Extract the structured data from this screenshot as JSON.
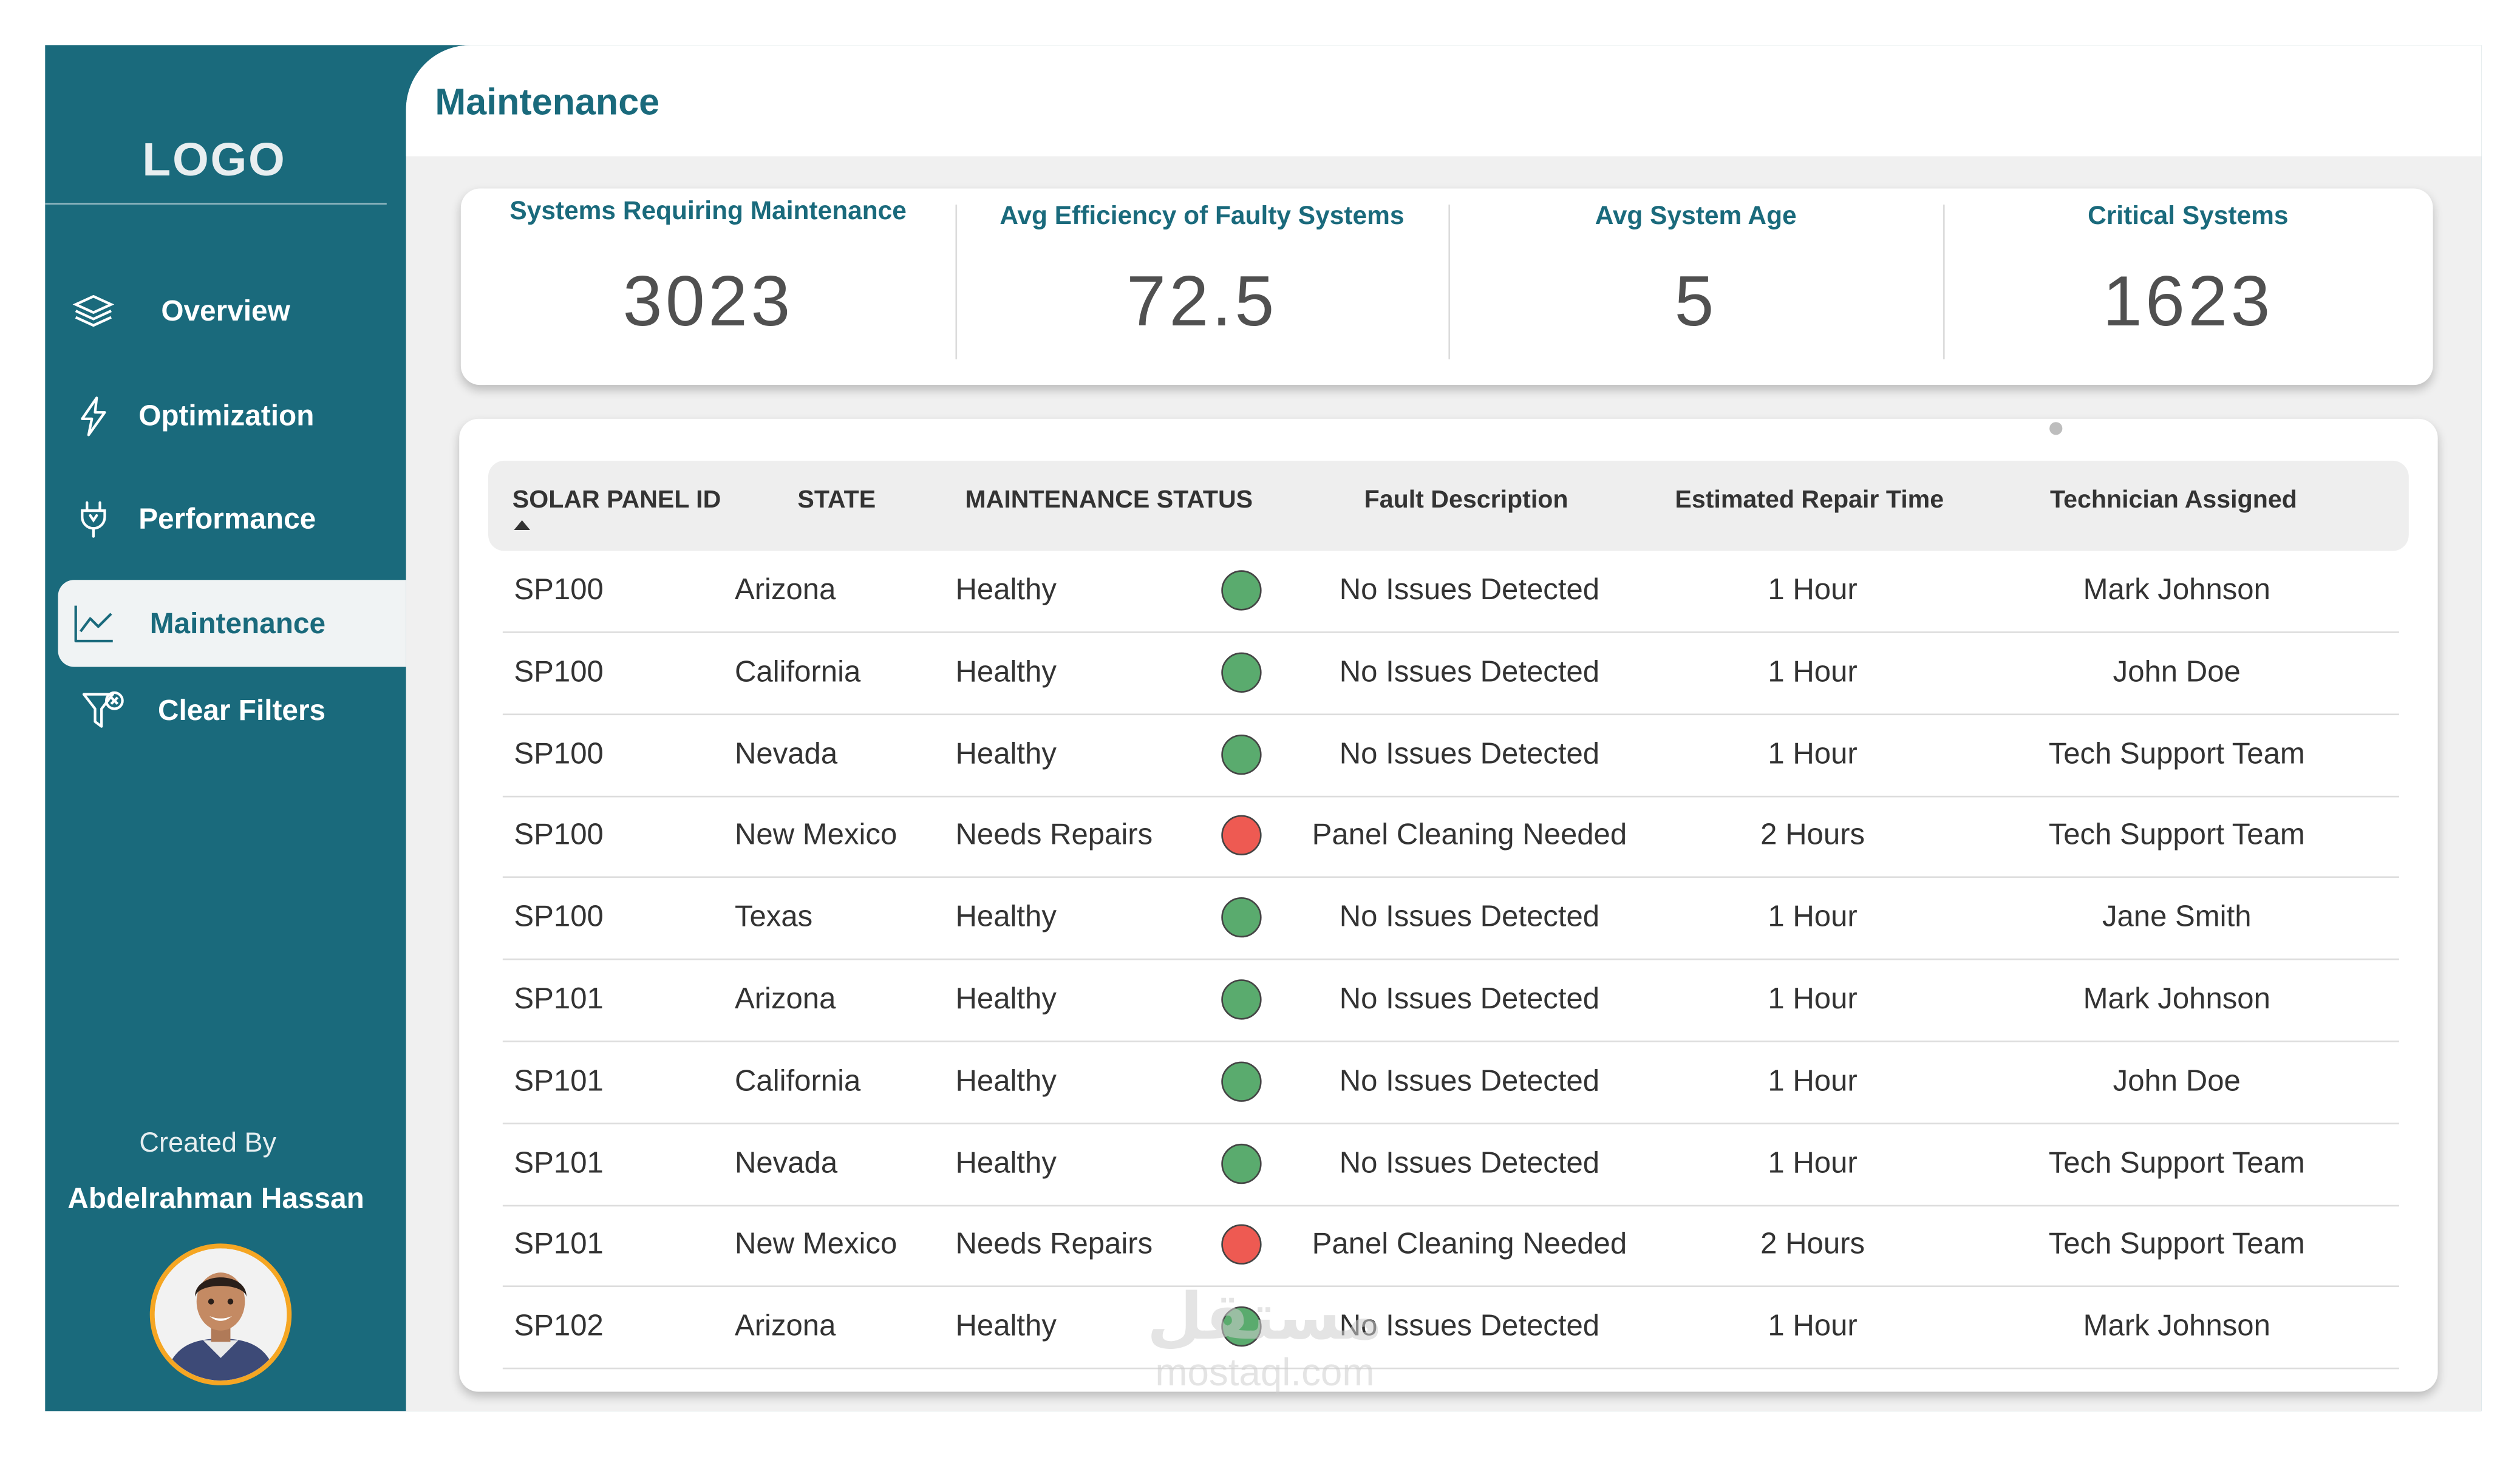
{
  "sidebar": {
    "logo": "LOGO",
    "items": [
      {
        "label": "Overview",
        "icon": "layers-icon",
        "active": false
      },
      {
        "label": "Optimization",
        "icon": "lightning-icon",
        "active": false
      },
      {
        "label": "Performance",
        "icon": "plug-icon",
        "active": false
      },
      {
        "label": "Maintenance",
        "icon": "line-chart-icon",
        "active": true
      },
      {
        "label": "Clear Filters",
        "icon": "filter-clear-icon",
        "active": false
      }
    ],
    "credit_label": "Created By",
    "credit_name": "Abdelrahman Hassan"
  },
  "page": {
    "title": "Maintenance"
  },
  "kpis": [
    {
      "label": "Systems Requiring Maintenance",
      "value": "3023"
    },
    {
      "label": "Avg Efficiency of Faulty Systems",
      "value": "72.5"
    },
    {
      "label": "Avg System Age",
      "value": "5"
    },
    {
      "label": "Critical Systems",
      "value": "1623"
    }
  ],
  "table": {
    "headers": [
      "SOLAR PANEL ID",
      "STATE",
      "MAINTENANCE STATUS",
      "Fault Description",
      "Estimated Repair Time",
      "Technician Assigned"
    ],
    "rows": [
      {
        "id": "SP100",
        "state": "Arizona",
        "status": "Healthy",
        "fault": "No Issues Detected",
        "time": "1 Hour",
        "tech": "Mark Johnson"
      },
      {
        "id": "SP100",
        "state": "California",
        "status": "Healthy",
        "fault": "No Issues Detected",
        "time": "1 Hour",
        "tech": "John Doe"
      },
      {
        "id": "SP100",
        "state": "Nevada",
        "status": "Healthy",
        "fault": "No Issues Detected",
        "time": "1 Hour",
        "tech": "Tech Support Team"
      },
      {
        "id": "SP100",
        "state": "New Mexico",
        "status": "Needs Repairs",
        "fault": "Panel Cleaning Needed",
        "time": "2 Hours",
        "tech": "Tech Support Team"
      },
      {
        "id": "SP100",
        "state": "Texas",
        "status": "Healthy",
        "fault": "No Issues Detected",
        "time": "1 Hour",
        "tech": "Jane Smith"
      },
      {
        "id": "SP101",
        "state": "Arizona",
        "status": "Healthy",
        "fault": "No Issues Detected",
        "time": "1 Hour",
        "tech": "Mark Johnson"
      },
      {
        "id": "SP101",
        "state": "California",
        "status": "Healthy",
        "fault": "No Issues Detected",
        "time": "1 Hour",
        "tech": "John Doe"
      },
      {
        "id": "SP101",
        "state": "Nevada",
        "status": "Healthy",
        "fault": "No Issues Detected",
        "time": "1 Hour",
        "tech": "Tech Support Team"
      },
      {
        "id": "SP101",
        "state": "New Mexico",
        "status": "Needs Repairs",
        "fault": "Panel Cleaning Needed",
        "time": "2 Hours",
        "tech": "Tech Support Team"
      },
      {
        "id": "SP102",
        "state": "Arizona",
        "status": "Healthy",
        "fault": "No Issues Detected",
        "time": "1 Hour",
        "tech": "Mark Johnson"
      }
    ]
  },
  "status_colors": {
    "Healthy": "#5aab6e",
    "Needs Repairs": "#ee5a52"
  },
  "colors": {
    "brand": "#1a6a7c"
  },
  "watermark": {
    "arabic": "مستقل",
    "latin": "mostaql.com"
  }
}
